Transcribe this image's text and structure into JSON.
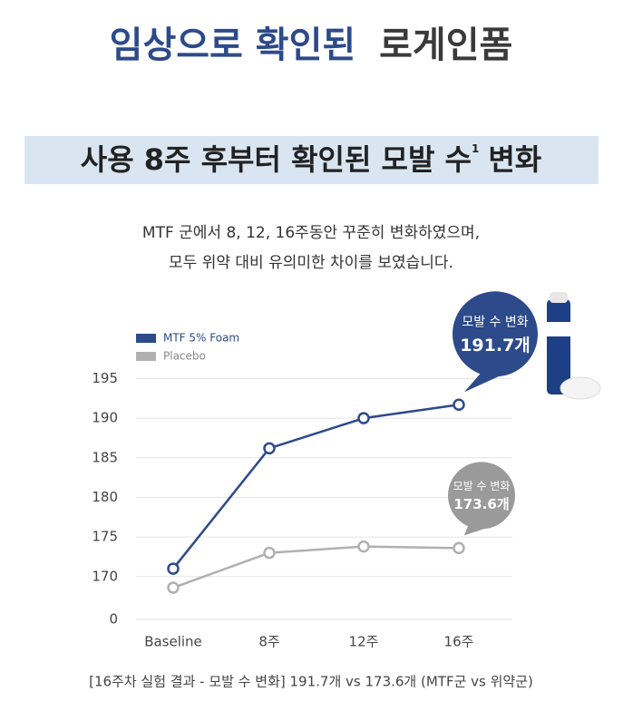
{
  "header": {
    "title_blue": "임상으로 확인된",
    "title_dark": "로게인폼"
  },
  "banner": {
    "text": "사용 8주 후부터 확인된 모발 수",
    "sup": "1",
    "text_end": "변화"
  },
  "description": [
    "MTF 군에서 8, 12, 16주동안 꾸준히 변화하였으며,",
    "모두 위약 대비 유의미한 차이를 보였습니다."
  ],
  "chart_data": {
    "type": "line",
    "categories": [
      "Baseline",
      "8주",
      "12주",
      "16주"
    ],
    "series": [
      {
        "name": "MTF 5% Foam",
        "color": "#2d4a8a",
        "values": [
          171.0,
          186.2,
          190.0,
          191.7
        ]
      },
      {
        "name": "Placebo",
        "color": "#b0b0b0",
        "values": [
          168.6,
          173.0,
          173.8,
          173.6
        ]
      }
    ],
    "ylim": [
      167,
      197
    ],
    "yticks": [
      0,
      170,
      175,
      180,
      185,
      190,
      195
    ],
    "axis_break": true,
    "grid": true,
    "legend": "top-left",
    "annotations": [
      {
        "series": 0,
        "label": "모발 수 변화",
        "value_text": "191.7개"
      },
      {
        "series": 1,
        "label": "모발 수 변화",
        "value_text": "173.6개"
      }
    ]
  },
  "footnote": "[16주차 실험 결과 - 모발 수 변화] 191.7개 vs 173.6개 (MTF군 vs 위약군)"
}
